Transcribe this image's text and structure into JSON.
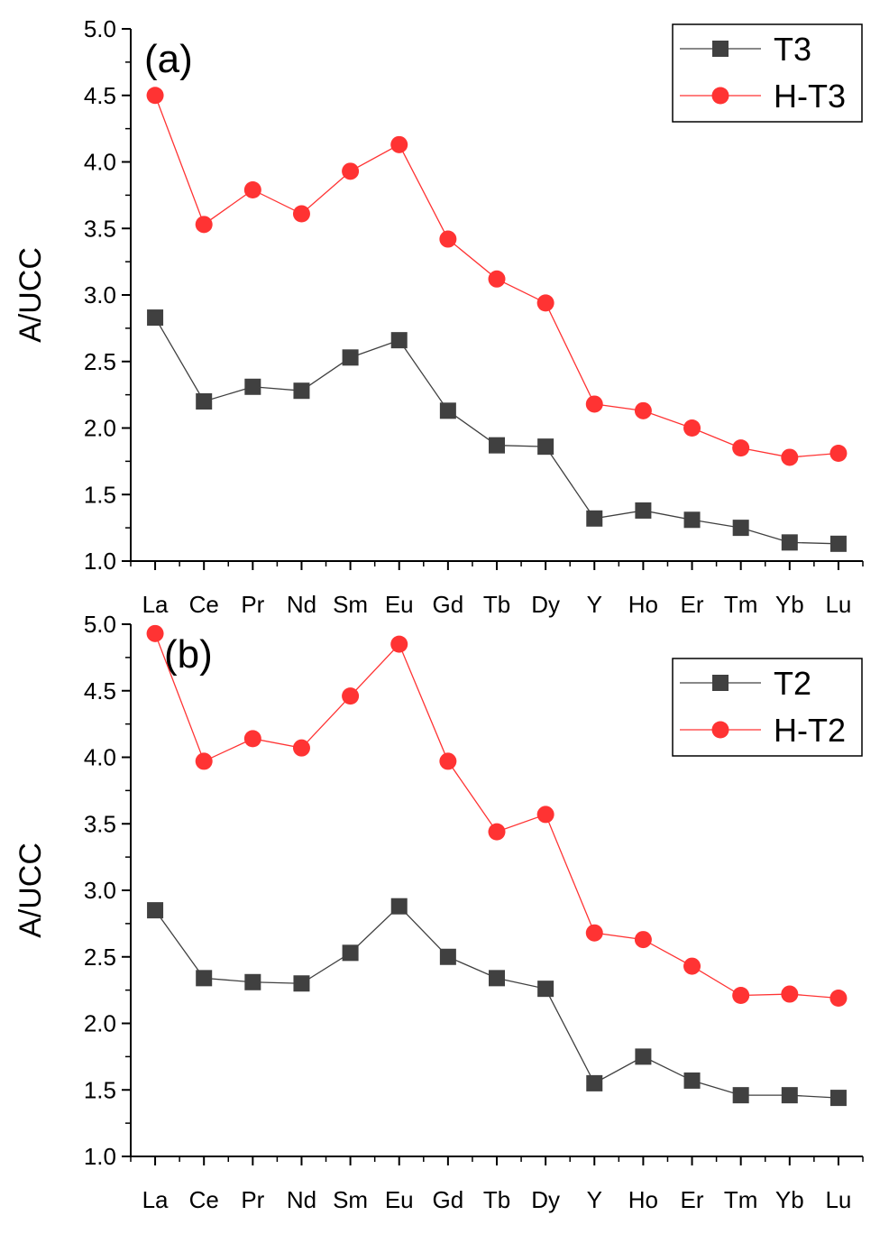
{
  "chart_data": [
    {
      "type": "line",
      "panel_label": "(a)",
      "ylabel": "A/UCC",
      "xlabel": "",
      "ylim": [
        1.0,
        5.0
      ],
      "yticks": [
        "1.0",
        "1.5",
        "2.0",
        "2.5",
        "3.0",
        "3.5",
        "4.0",
        "4.5",
        "5.0"
      ],
      "categories": [
        "La",
        "Ce",
        "Pr",
        "Nd",
        "Sm",
        "Eu",
        "Gd",
        "Tb",
        "Dy",
        "Y",
        "Ho",
        "Er",
        "Tm",
        "Yb",
        "Lu"
      ],
      "legend_position": "top-right",
      "series": [
        {
          "name": "T3",
          "color": "#404040",
          "marker": "square",
          "values": [
            2.83,
            2.2,
            2.31,
            2.28,
            2.53,
            2.66,
            2.13,
            1.87,
            1.86,
            1.32,
            1.38,
            1.31,
            1.25,
            1.14,
            1.13
          ]
        },
        {
          "name": "H-T3",
          "color": "#ff3333",
          "marker": "circle",
          "values": [
            4.5,
            3.53,
            3.79,
            3.61,
            3.93,
            4.13,
            3.42,
            3.12,
            2.94,
            2.18,
            2.13,
            2.0,
            1.85,
            1.78,
            1.81
          ]
        }
      ]
    },
    {
      "type": "line",
      "panel_label": "(b)",
      "ylabel": "A/UCC",
      "xlabel": "",
      "ylim": [
        1.0,
        5.0
      ],
      "yticks": [
        "1.0",
        "1.5",
        "2.0",
        "2.5",
        "3.0",
        "3.5",
        "4.0",
        "4.5",
        "5.0"
      ],
      "categories": [
        "La",
        "Ce",
        "Pr",
        "Nd",
        "Sm",
        "Eu",
        "Gd",
        "Tb",
        "Dy",
        "Y",
        "Ho",
        "Er",
        "Tm",
        "Yb",
        "Lu"
      ],
      "legend_position": "top-right",
      "series": [
        {
          "name": "T2",
          "color": "#404040",
          "marker": "square",
          "values": [
            2.85,
            2.34,
            2.31,
            2.3,
            2.53,
            2.88,
            2.5,
            2.34,
            2.26,
            1.55,
            1.75,
            1.57,
            1.46,
            1.46,
            1.44
          ]
        },
        {
          "name": "H-T2",
          "color": "#ff3333",
          "marker": "circle",
          "values": [
            4.93,
            3.97,
            4.14,
            4.07,
            4.46,
            4.85,
            3.97,
            3.44,
            3.57,
            2.68,
            2.63,
            2.43,
            2.21,
            2.22,
            2.19
          ]
        }
      ]
    }
  ]
}
